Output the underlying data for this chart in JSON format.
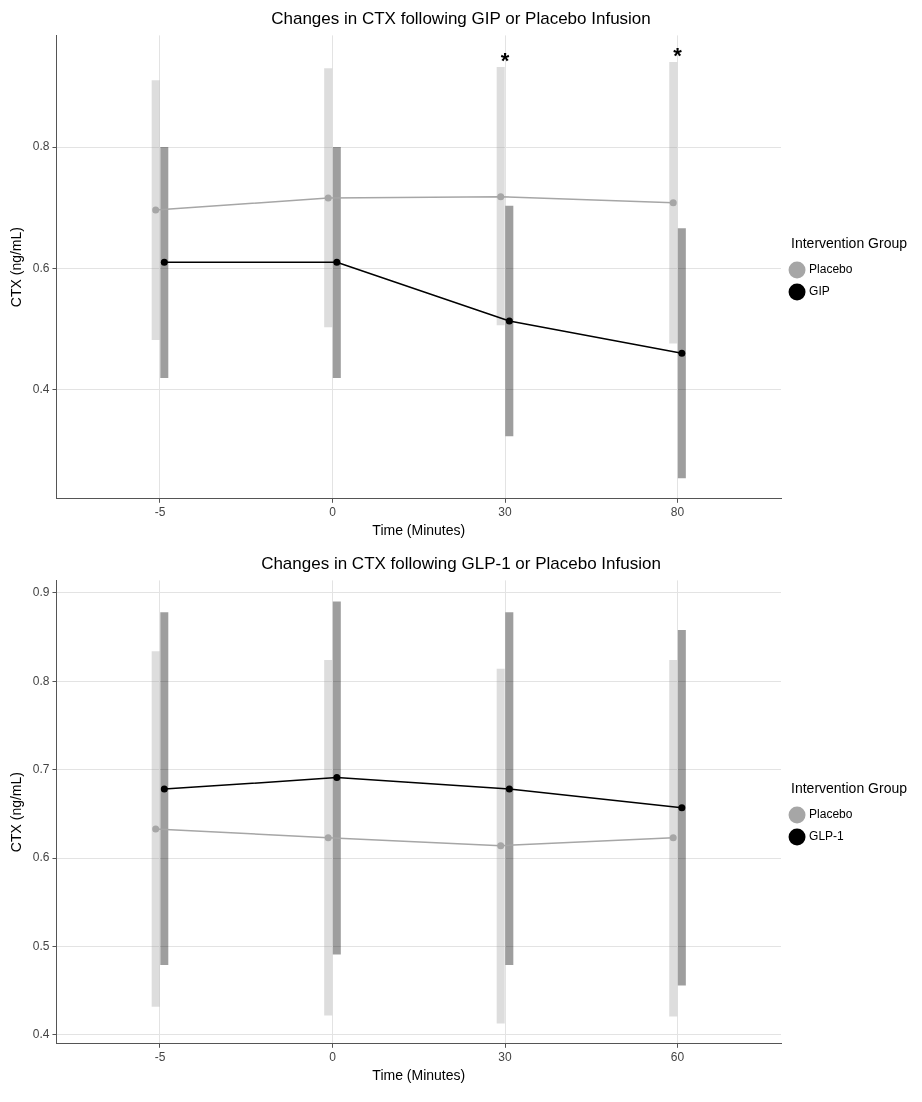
{
  "chart_data": [
    {
      "type": "line",
      "title": "Changes in CTX following GIP or Placebo Infusion",
      "xlabel": "Time (Minutes)",
      "ylabel": "CTX (ng/mL)",
      "legend_title": "Intervention Group",
      "legend": "right",
      "grid": true,
      "marker": "circle",
      "categories": [
        "-5",
        "0",
        "30",
        "80"
      ],
      "ylim": [
        0.22,
        0.984
      ],
      "yticks": [
        0.4,
        0.6,
        0.8
      ],
      "series": [
        {
          "name": "Placebo",
          "color": "#a6a6a6",
          "values": [
            0.696,
            0.716,
            0.718,
            0.708
          ],
          "errors": [
            [
              0.482,
              0.91
            ],
            [
              0.503,
              0.93
            ],
            [
              0.506,
              0.932
            ],
            [
              0.476,
              0.94
            ]
          ]
        },
        {
          "name": "GIP",
          "color": "#000000",
          "values": [
            0.61,
            0.61,
            0.513,
            0.46
          ],
          "errors": [
            [
              0.419,
              0.8
            ],
            [
              0.419,
              0.8
            ],
            [
              0.323,
              0.703
            ],
            [
              0.254,
              0.666
            ]
          ]
        }
      ],
      "annotations": [
        {
          "text": "*",
          "x": "30",
          "y": 0.932
        },
        {
          "text": "*",
          "x": "80",
          "y": 0.94
        }
      ]
    },
    {
      "type": "line",
      "title": "Changes in CTX following GLP-1 or Placebo Infusion",
      "xlabel": "Time (Minutes)",
      "ylabel": "CTX (ng/mL)",
      "legend_title": "Intervention Group",
      "legend": "right",
      "grid": true,
      "marker": "circle",
      "categories": [
        "-5",
        "0",
        "30",
        "60"
      ],
      "ylim": [
        0.39,
        0.914
      ],
      "yticks": [
        0.4,
        0.5,
        0.6,
        0.7,
        0.8,
        0.9
      ],
      "series": [
        {
          "name": "Placebo",
          "color": "#a6a6a6",
          "values": [
            0.633,
            0.623,
            0.614,
            0.623
          ],
          "errors": [
            [
              0.432,
              0.834
            ],
            [
              0.422,
              0.824
            ],
            [
              0.413,
              0.814
            ],
            [
              0.421,
              0.824
            ]
          ]
        },
        {
          "name": "GLP-1",
          "color": "#000000",
          "values": [
            0.678,
            0.691,
            0.678,
            0.657
          ],
          "errors": [
            [
              0.479,
              0.878
            ],
            [
              0.491,
              0.89
            ],
            [
              0.479,
              0.878
            ],
            [
              0.456,
              0.858
            ]
          ]
        }
      ]
    }
  ]
}
